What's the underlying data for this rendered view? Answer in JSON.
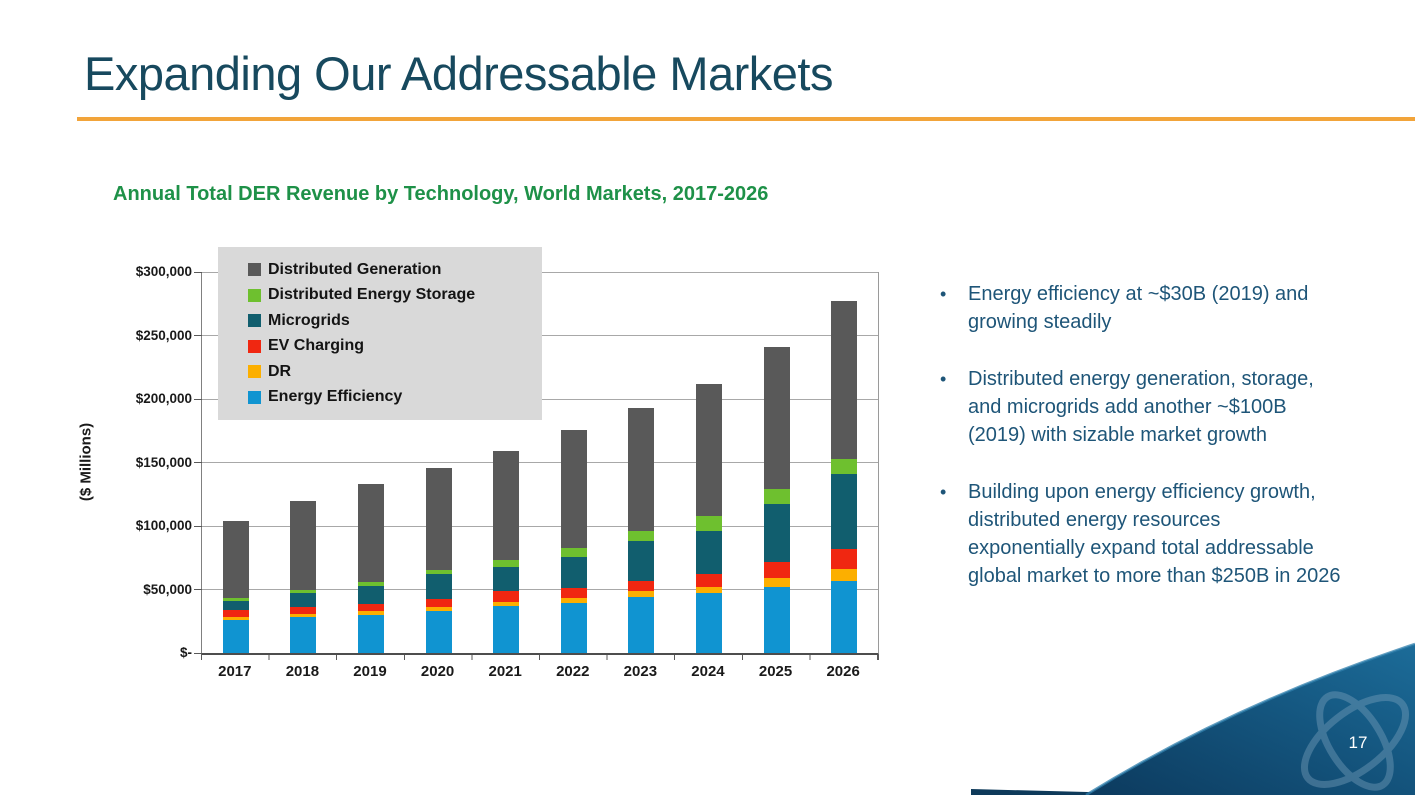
{
  "slide": {
    "title": "Expanding Our Addressable Markets",
    "page_number": "17"
  },
  "chart": {
    "heading": "Annual Total DER Revenue by Technology, World Markets, 2017-2026",
    "ylabel": "($ Millions)"
  },
  "chart_data": {
    "type": "bar",
    "subtype": "stacked",
    "title": "Annual Total DER Revenue by Technology, World Markets, 2017-2026",
    "xlabel": "",
    "ylabel": "($ Millions)",
    "units": "USD millions",
    "ylim": [
      0,
      300000
    ],
    "yticks": [
      0,
      50000,
      100000,
      150000,
      200000,
      250000,
      300000
    ],
    "ytick_labels": [
      "$-",
      "$50,000",
      "$100,000",
      "$150,000",
      "$200,000",
      "$250,000",
      "$300,000"
    ],
    "grid": "horizontal",
    "legend_position": "top-left-inside",
    "categories": [
      "2017",
      "2018",
      "2019",
      "2020",
      "2021",
      "2022",
      "2023",
      "2024",
      "2025",
      "2026"
    ],
    "series_bottom_to_top": [
      {
        "name": "Energy Efficiency",
        "color": "#1094D1",
        "values": [
          26000,
          28000,
          30000,
          33000,
          37000,
          39000,
          44000,
          47000,
          52000,
          57000
        ]
      },
      {
        "name": "DR",
        "color": "#FCAF00",
        "values": [
          2500,
          3000,
          3000,
          3000,
          3500,
          4000,
          4500,
          5000,
          7000,
          9000
        ]
      },
      {
        "name": "EV Charging",
        "color": "#F02711",
        "values": [
          5000,
          5000,
          5500,
          6500,
          8000,
          8000,
          8500,
          10000,
          13000,
          16000
        ]
      },
      {
        "name": "Microgrids",
        "color": "#115E6E",
        "values": [
          7500,
          11000,
          14500,
          19500,
          19500,
          25000,
          31000,
          34000,
          45000,
          59000
        ]
      },
      {
        "name": "Distributed Energy Storage",
        "color": "#6EC02F",
        "values": [
          2000,
          2500,
          3000,
          3500,
          5000,
          6500,
          8000,
          12000,
          12000,
          12000
        ]
      },
      {
        "name": "Distributed Generation",
        "color": "#595959",
        "values": [
          61000,
          70500,
          77000,
          80500,
          86000,
          93500,
          97000,
          104000,
          112000,
          124000
        ]
      }
    ],
    "totals": [
      104000,
      120000,
      133000,
      146000,
      159000,
      176000,
      193000,
      212000,
      241000,
      277000
    ]
  },
  "bullets": [
    "Energy efficiency at ~$30B (2019) and growing steadily",
    "Distributed energy generation, storage, and microgrids add another ~$100B (2019) with sizable market growth",
    "Building upon energy efficiency growth, distributed energy resources exponentially expand total addressable global market to more than $250B in 2026"
  ],
  "colors": {
    "title_text": "#17495E",
    "divider_orange": "#F2A43A",
    "chart_heading_green": "#1E9148",
    "bullet_text": "#1E5578",
    "legend_background": "#D9D9D9",
    "gridline": "#A8A8A8",
    "ribbon_dark": "#0E3A5A",
    "ribbon_gradient_start": "#0C3A5E",
    "ribbon_gradient_end": "#1C6C99"
  }
}
